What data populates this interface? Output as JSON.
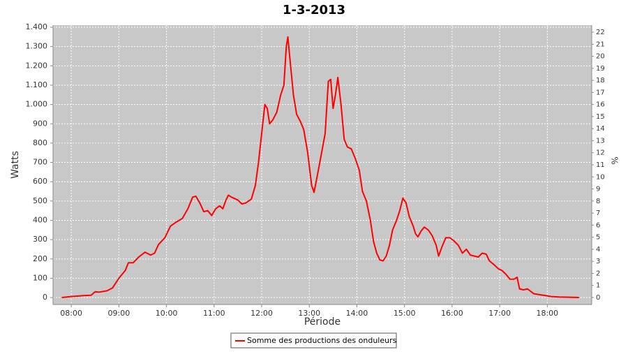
{
  "chart_data": {
    "type": "line",
    "title": "1-3-2013",
    "x_label": "Période",
    "y_label": "Watts",
    "y2_label": "%",
    "x": [
      "07:48",
      "08:00",
      "08:15",
      "08:25",
      "08:30",
      "08:35",
      "08:45",
      "08:52",
      "09:00",
      "09:08",
      "09:12",
      "09:18",
      "09:25",
      "09:33",
      "09:40",
      "09:45",
      "09:50",
      "09:58",
      "10:05",
      "10:12",
      "10:20",
      "10:27",
      "10:33",
      "10:37",
      "10:42",
      "10:47",
      "10:52",
      "10:57",
      "11:02",
      "11:07",
      "11:11",
      "11:15",
      "11:18",
      "11:22",
      "11:30",
      "11:35",
      "11:40",
      "11:47",
      "11:52",
      "11:56",
      "12:00",
      "12:04",
      "12:07",
      "12:10",
      "12:14",
      "12:19",
      "12:24",
      "12:28",
      "12:31",
      "12:33",
      "12:36",
      "12:40",
      "12:44",
      "12:49",
      "12:53",
      "12:58",
      "13:03",
      "13:06",
      "13:11",
      "13:16",
      "13:20",
      "13:24",
      "13:27",
      "13:30",
      "13:33",
      "13:36",
      "13:40",
      "13:44",
      "13:48",
      "13:53",
      "13:58",
      "14:03",
      "14:07",
      "14:12",
      "14:17",
      "14:21",
      "14:25",
      "14:29",
      "14:33",
      "14:37",
      "14:41",
      "14:45",
      "14:50",
      "14:54",
      "14:58",
      "15:02",
      "15:06",
      "15:11",
      "15:14",
      "15:17",
      "15:21",
      "15:25",
      "15:30",
      "15:35",
      "15:40",
      "15:43",
      "15:47",
      "15:52",
      "15:57",
      "16:02",
      "16:08",
      "16:13",
      "16:18",
      "16:23",
      "16:28",
      "16:33",
      "16:38",
      "16:43",
      "16:47",
      "16:53",
      "16:58",
      "17:03",
      "17:08",
      "17:13",
      "17:18",
      "17:22",
      "17:25",
      "17:30",
      "17:35",
      "17:43",
      "17:50",
      "17:58",
      "18:05",
      "18:15",
      "18:25",
      "18:40"
    ],
    "series": [
      {
        "name": "Somme des productions des onduleurs",
        "color": "#ff0000",
        "values": [
          0,
          5,
          10,
          12,
          30,
          28,
          35,
          50,
          100,
          140,
          180,
          180,
          210,
          235,
          220,
          230,
          275,
          310,
          370,
          390,
          410,
          460,
          520,
          525,
          490,
          445,
          450,
          425,
          460,
          475,
          460,
          505,
          530,
          520,
          505,
          485,
          490,
          510,
          580,
          700,
          850,
          1000,
          980,
          900,
          920,
          960,
          1050,
          1100,
          1300,
          1350,
          1220,
          1050,
          950,
          910,
          870,
          750,
          580,
          545,
          650,
          760,
          850,
          1120,
          1130,
          980,
          1050,
          1140,
          1000,
          820,
          780,
          770,
          720,
          660,
          550,
          500,
          400,
          290,
          230,
          195,
          190,
          215,
          270,
          350,
          400,
          450,
          515,
          490,
          420,
          370,
          330,
          315,
          345,
          365,
          350,
          320,
          270,
          215,
          260,
          310,
          310,
          295,
          270,
          230,
          250,
          220,
          215,
          210,
          230,
          225,
          190,
          170,
          150,
          140,
          120,
          95,
          95,
          105,
          45,
          40,
          45,
          20,
          15,
          10,
          5,
          3,
          2,
          0
        ]
      }
    ],
    "xlim": [
      "07:37",
      "18:56"
    ],
    "xticks": [
      "08:00",
      "09:00",
      "10:00",
      "11:00",
      "12:00",
      "13:00",
      "14:00",
      "15:00",
      "16:00",
      "17:00",
      "18:00"
    ],
    "ylim": [
      -36,
      1411
    ],
    "yticks": [
      0,
      100,
      200,
      300,
      400,
      500,
      600,
      700,
      800,
      900,
      {
        "value": 1000,
        "label": "1.000"
      },
      {
        "value": 1100,
        "label": "1.100"
      },
      {
        "value": 1200,
        "label": "1.200"
      },
      {
        "value": 1300,
        "label": "1.300"
      },
      {
        "value": 1400,
        "label": "1.400"
      }
    ],
    "y2lim": [
      -0.58,
      22.58
    ],
    "y2ticks": [
      0,
      1,
      2,
      3,
      4,
      5,
      6,
      7,
      8,
      9,
      10,
      11,
      12,
      13,
      14,
      15,
      16,
      17,
      18,
      19,
      20,
      21,
      22
    ],
    "grid": true,
    "legend": "bottom"
  }
}
